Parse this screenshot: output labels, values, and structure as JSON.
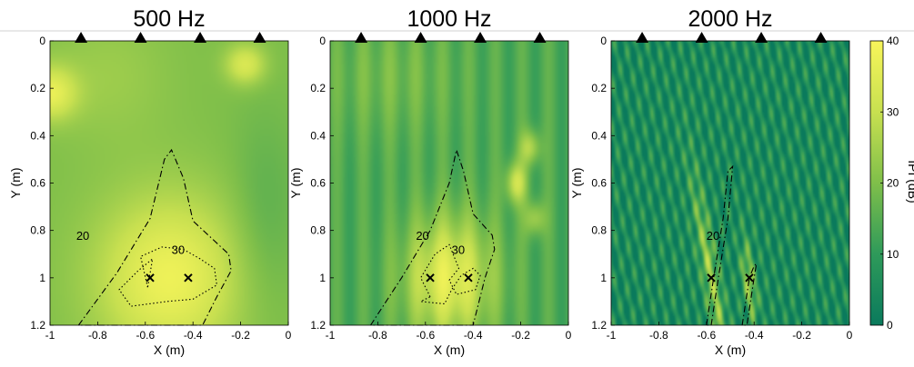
{
  "figure": {
    "colors": {
      "low": "#0a7a5c",
      "mid": "#7fbf4a",
      "high": "#f7f55a",
      "contour": "#000000"
    },
    "chart_data": [
      {
        "type": "heatmap",
        "title": "500 Hz",
        "xlabel": "X (m)",
        "ylabel": "Y (m)",
        "xlim": [
          -1,
          0
        ],
        "ylim": [
          1.2,
          0
        ],
        "xticks": [
          "-1",
          "-0.8",
          "-0.6",
          "-0.4",
          "-0.2",
          "0"
        ],
        "yticks": [
          "0",
          "0.2",
          "0.4",
          "0.6",
          "0.8",
          "1",
          "1.2"
        ],
        "sources": [
          {
            "x": -0.87,
            "y": 0
          },
          {
            "x": -0.62,
            "y": 0
          },
          {
            "x": -0.37,
            "y": 0
          },
          {
            "x": -0.12,
            "y": 0
          }
        ],
        "targets": [
          {
            "x": -0.58,
            "y": 1.0
          },
          {
            "x": -0.42,
            "y": 1.0
          }
        ],
        "contours": [
          {
            "level": "20",
            "style": "dash-dot",
            "label_at": {
              "x": -0.89,
              "y": 0.82
            },
            "path": [
              [
                -0.88,
                1.2
              ],
              [
                -0.72,
                0.98
              ],
              [
                -0.58,
                0.75
              ],
              [
                -0.52,
                0.5
              ],
              [
                -0.49,
                0.46
              ],
              [
                -0.44,
                0.58
              ],
              [
                -0.4,
                0.76
              ],
              [
                -0.25,
                0.9
              ],
              [
                -0.24,
                0.97
              ],
              [
                -0.3,
                1.08
              ],
              [
                -0.36,
                1.2
              ]
            ]
          },
          {
            "level": "30",
            "style": "dotted",
            "label_at": {
              "x": -0.49,
              "y": 0.88
            },
            "path": [
              [
                -0.59,
                1.04
              ],
              [
                -0.62,
                0.91
              ],
              [
                -0.53,
                0.87
              ],
              [
                -0.44,
                0.88
              ],
              [
                -0.37,
                0.92
              ],
              [
                -0.31,
                0.96
              ],
              [
                -0.3,
                1.03
              ],
              [
                -0.4,
                1.09
              ],
              [
                -0.51,
                1.1
              ],
              [
                -0.66,
                1.12
              ],
              [
                -0.71,
                1.05
              ],
              [
                -0.63,
                0.97
              ],
              [
                -0.57,
                0.92
              ]
            ]
          }
        ],
        "field": {
          "base": 0.5,
          "waves": [],
          "blobs": [
            {
              "x": -0.5,
              "y": 1.0,
              "sx": 0.22,
              "sy": 0.25,
              "a": 0.45
            },
            {
              "x": -1.0,
              "y": 0.22,
              "sx": 0.08,
              "sy": 0.08,
              "a": 0.4
            },
            {
              "x": -0.18,
              "y": 0.1,
              "sx": 0.06,
              "sy": 0.06,
              "a": 0.35
            },
            {
              "x": -0.75,
              "y": 0.15,
              "sx": 0.18,
              "sy": 0.2,
              "a": 0.1
            },
            {
              "x": -0.1,
              "y": 0.75,
              "sx": 0.1,
              "sy": 0.3,
              "a": -0.12
            }
          ]
        }
      },
      {
        "type": "heatmap",
        "title": "1000 Hz",
        "xlabel": "X (m)",
        "ylabel": "Y (m)",
        "xlim": [
          -1,
          0
        ],
        "ylim": [
          1.2,
          0
        ],
        "xticks": [
          "-1",
          "-0.8",
          "-0.6",
          "-0.4",
          "-0.2",
          "0"
        ],
        "yticks": [
          "0",
          "0.2",
          "0.4",
          "0.6",
          "0.8",
          "1",
          "1.2"
        ],
        "sources": [
          {
            "x": -0.87,
            "y": 0
          },
          {
            "x": -0.62,
            "y": 0
          },
          {
            "x": -0.37,
            "y": 0
          },
          {
            "x": -0.12,
            "y": 0
          }
        ],
        "targets": [
          {
            "x": -0.58,
            "y": 1.0
          },
          {
            "x": -0.42,
            "y": 1.0
          }
        ],
        "contours": [
          {
            "level": "20",
            "style": "dash-dot",
            "label_at": {
              "x": -0.64,
              "y": 0.82
            },
            "path": [
              [
                -0.83,
                1.2
              ],
              [
                -0.7,
                1.0
              ],
              [
                -0.58,
                0.8
              ],
              [
                -0.5,
                0.6
              ],
              [
                -0.47,
                0.46
              ],
              [
                -0.44,
                0.55
              ],
              [
                -0.4,
                0.73
              ],
              [
                -0.32,
                0.82
              ],
              [
                -0.31,
                0.88
              ],
              [
                -0.35,
                1.0
              ],
              [
                -0.4,
                1.2
              ]
            ]
          },
          {
            "level": "30",
            "style": "dotted",
            "label_at": {
              "x": -0.49,
              "y": 0.88
            },
            "path": [
              [
                -0.58,
                1.08
              ],
              [
                -0.62,
                1.0
              ],
              [
                -0.56,
                0.9
              ],
              [
                -0.5,
                0.86
              ],
              [
                -0.46,
                0.96
              ],
              [
                -0.5,
                1.01
              ],
              [
                -0.47,
                1.07
              ],
              [
                -0.39,
                1.05
              ],
              [
                -0.37,
                0.99
              ],
              [
                -0.4,
                0.96
              ],
              [
                -0.45,
                0.99
              ],
              [
                -0.49,
                1.05
              ],
              [
                -0.52,
                1.11
              ],
              [
                -0.62,
                1.1
              ]
            ]
          }
        ],
        "field": {
          "base": 0.35,
          "waves": [
            {
              "fx": 9.0,
              "fy": 0.0,
              "amp": 0.07
            }
          ],
          "blobs": [
            {
              "x": -0.5,
              "y": 1.0,
              "sx": 0.13,
              "sy": 0.18,
              "a": 0.55
            },
            {
              "x": -0.22,
              "y": 0.6,
              "sx": 0.03,
              "sy": 0.06,
              "a": 0.45
            },
            {
              "x": -0.16,
              "y": 0.45,
              "sx": 0.03,
              "sy": 0.05,
              "a": 0.35
            },
            {
              "x": -0.14,
              "y": 0.75,
              "sx": 0.03,
              "sy": 0.05,
              "a": 0.3
            },
            {
              "x": -0.75,
              "y": 0.15,
              "sx": 0.2,
              "sy": 0.18,
              "a": 0.12
            }
          ]
        }
      },
      {
        "type": "heatmap",
        "title": "2000 Hz",
        "xlabel": "X (m)",
        "ylabel": "Y (m)",
        "xlim": [
          -1,
          0
        ],
        "ylim": [
          1.2,
          0
        ],
        "xticks": [
          "-1",
          "-0.8",
          "-0.6",
          "-0.4",
          "-0.2",
          "0"
        ],
        "yticks": [
          "0",
          "0.2",
          "0.4",
          "0.6",
          "0.8",
          "1",
          "1.2"
        ],
        "sources": [
          {
            "x": -0.87,
            "y": 0
          },
          {
            "x": -0.62,
            "y": 0
          },
          {
            "x": -0.37,
            "y": 0
          },
          {
            "x": -0.12,
            "y": 0
          }
        ],
        "targets": [
          {
            "x": -0.58,
            "y": 1.0
          },
          {
            "x": -0.42,
            "y": 1.0
          }
        ],
        "contours": [
          {
            "level": "20",
            "style": "dash-dot",
            "label_at": {
              "x": -0.6,
              "y": 0.82
            },
            "path": [
              [
                -0.6,
                1.2
              ],
              [
                -0.57,
                1.0
              ],
              [
                -0.53,
                0.75
              ],
              [
                -0.51,
                0.55
              ],
              [
                -0.49,
                0.53
              ],
              [
                -0.51,
                0.75
              ],
              [
                -0.55,
                1.0
              ],
              [
                -0.58,
                1.2
              ]
            ]
          },
          {
            "level": "",
            "style": "dash-dot",
            "label_at": null,
            "path": [
              [
                -0.45,
                1.2
              ],
              [
                -0.42,
                1.0
              ],
              [
                -0.4,
                0.95
              ],
              [
                -0.39,
                0.94
              ],
              [
                -0.4,
                1.0
              ],
              [
                -0.43,
                1.2
              ]
            ]
          }
        ],
        "field": {
          "base": 0.12,
          "waves": [
            {
              "fx": 22.0,
              "fy": -5.0,
              "amp": 0.16
            },
            {
              "fx": 14.0,
              "fy": 6.0,
              "amp": 0.08
            }
          ],
          "blobs": [
            {
              "x": -0.58,
              "y": 1.0,
              "sx": 0.025,
              "sy": 0.3,
              "a": 0.45,
              "skew": 0.17
            },
            {
              "x": -0.42,
              "y": 1.02,
              "sx": 0.02,
              "sy": 0.12,
              "a": 0.45,
              "skew": 0.1
            }
          ]
        }
      }
    ],
    "colorbar": {
      "ticks": [
        "0",
        "10",
        "20",
        "30",
        "40"
      ],
      "label": "IPI (dB)",
      "range": [
        0,
        40
      ]
    }
  }
}
